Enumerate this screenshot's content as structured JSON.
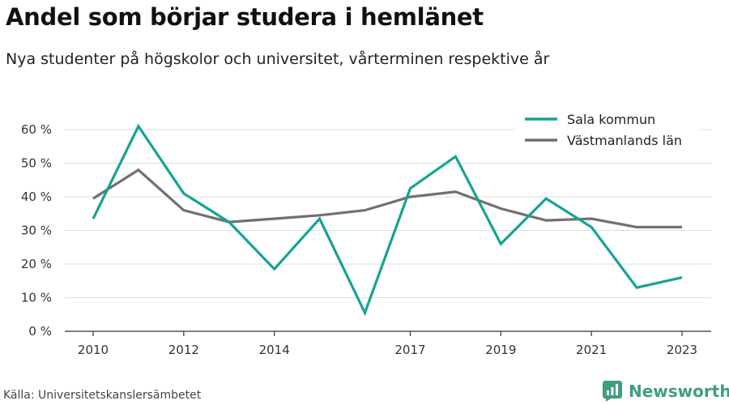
{
  "title": "Andel som börjar studera i hemlänet",
  "subtitle": "Nya studenter på högskolor och universitet, vårterminen respektive år",
  "source": "Källa: Universitetskanslersämbetet",
  "brand": "Newsworthy",
  "colors": {
    "brand": "#3f9e7f",
    "grid": "#dddddd",
    "axis": "#333333"
  },
  "chart_data": {
    "type": "line",
    "x": [
      2010,
      2011,
      2012,
      2013,
      2014,
      2015,
      2016,
      2017,
      2018,
      2019,
      2020,
      2021,
      2022,
      2023
    ],
    "x_tick_labels": [
      "2010",
      "2012",
      "2014",
      "2017",
      "2019",
      "2021",
      "2023"
    ],
    "y_ticks": [
      0,
      10,
      20,
      30,
      40,
      50,
      60
    ],
    "y_tick_labels": [
      "0 %",
      "10 %",
      "20 %",
      "30 %",
      "40 %",
      "50 %",
      "60 %"
    ],
    "ylim": [
      0,
      62
    ],
    "grid": true,
    "legend_position": "top-right",
    "series": [
      {
        "name": "Sala kommun",
        "color": "#16a394",
        "values": [
          33.5,
          61,
          41,
          32.5,
          18.5,
          33.5,
          5.5,
          42.5,
          52,
          26,
          39.5,
          31,
          13,
          16
        ]
      },
      {
        "name": "Västmanlands län",
        "color": "#707075",
        "values": [
          39.5,
          48,
          36,
          32.5,
          33.5,
          34.5,
          36,
          40,
          41.5,
          36.5,
          33,
          33.5,
          31,
          31
        ]
      }
    ]
  }
}
